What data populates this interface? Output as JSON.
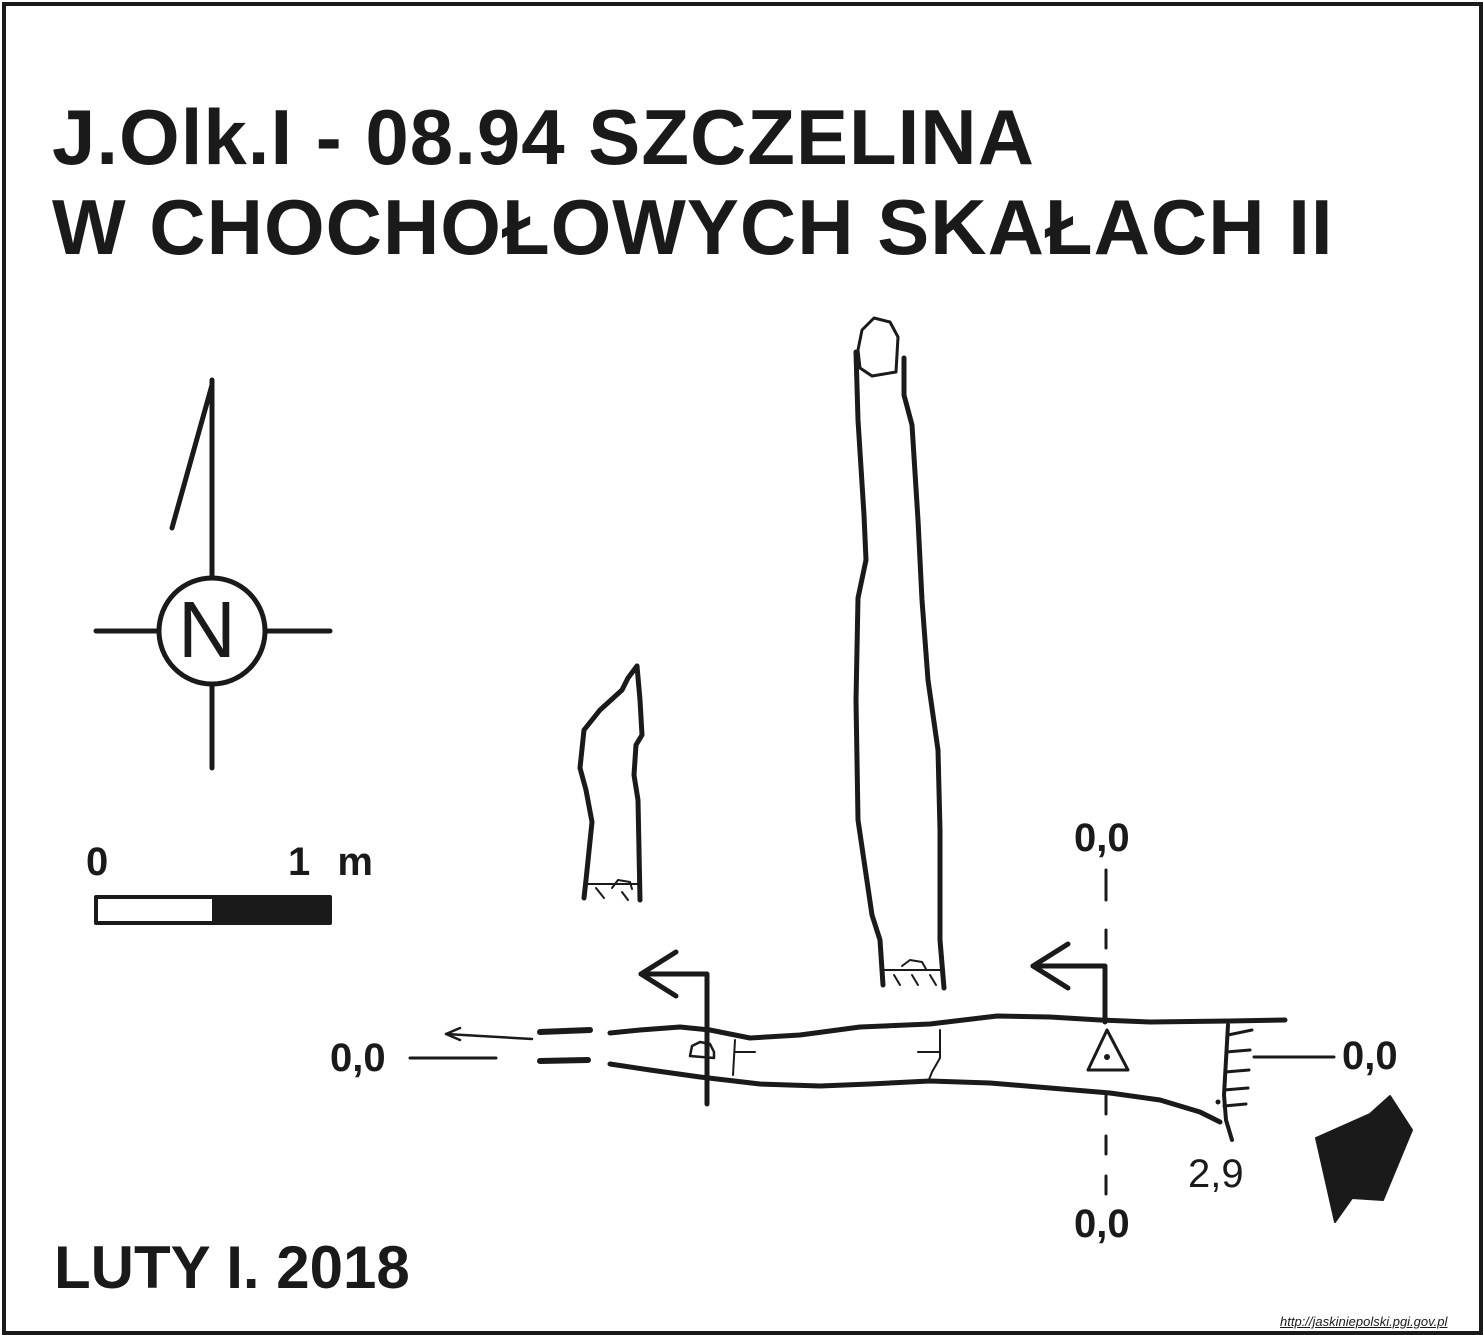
{
  "title": {
    "line1": "J.Olk.I - 08.94  SZCZELINA",
    "line2": "W CHOCHOŁOWYCH SKAŁACH II"
  },
  "north_arrow": {
    "letter": "N"
  },
  "scale_bar": {
    "left_label": "0",
    "right_label": "1 m"
  },
  "section_labels": {
    "top": "0,0",
    "bottom": "0,0",
    "left": "0,0",
    "right": "0,0"
  },
  "depth_label": "2,9",
  "date": "LUTY I. 2018",
  "source_url": "http://jaskiniepolski.pgi.gov.pl",
  "colors": {
    "ink": "#1a1a1a",
    "paper": "#ffffff"
  }
}
